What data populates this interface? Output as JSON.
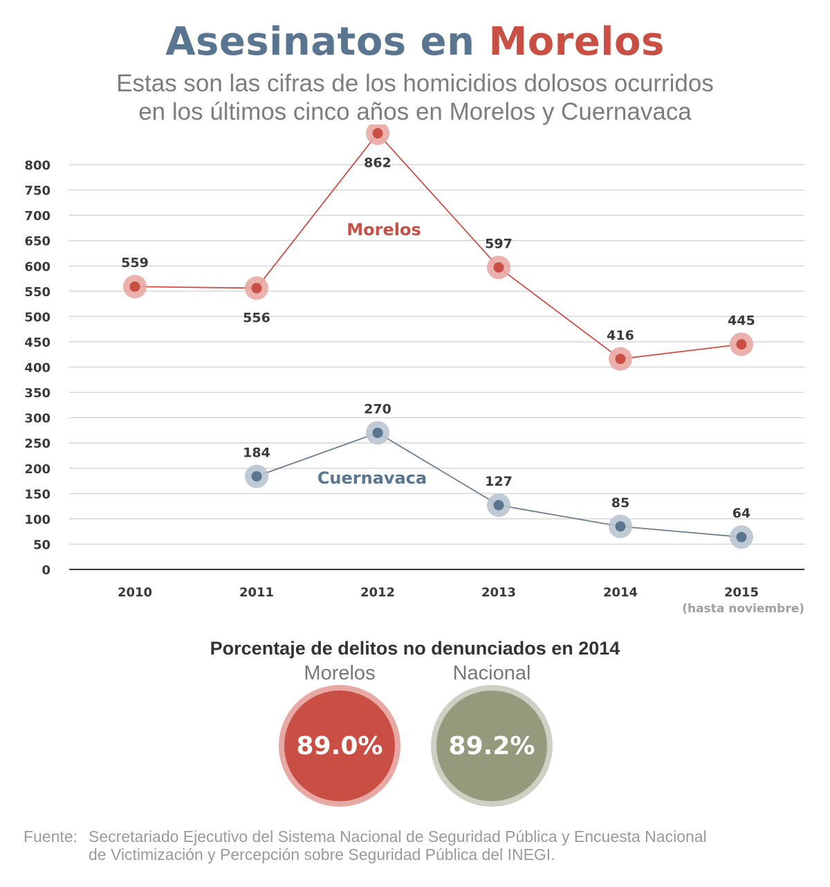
{
  "header": {
    "title_part1": "Asesinatos en",
    "title_part2": "Morelos",
    "subtitle_line1": "Estas son las cifras de los homicidios dolosos ocurridos",
    "subtitle_line2": "en los últimos cinco años en Morelos y Cuernavaca"
  },
  "colors": {
    "morelos": "#c94f45",
    "morelos_halo": "#e8a9a4",
    "cuernavaca": "#5a7590",
    "cuernavaca_line": "#6b7f90",
    "cuernavaca_halo": "#b8c4cf",
    "nacional": "#969a7c",
    "nacional_halo": "#cfd0c4",
    "grid": "#d6d6d6",
    "axis": "#333333"
  },
  "chart_data": {
    "type": "line",
    "title": "Asesinatos en Morelos",
    "subtitle": "Estas son las cifras de los homicidios dolosos ocurridos en los últimos cinco años en Morelos y Cuernavaca",
    "xlabel": "",
    "ylabel": "",
    "categories": [
      "2010",
      "2011",
      "2012",
      "2013",
      "2014",
      "2015"
    ],
    "category_note": {
      "index": 5,
      "text": "(hasta noviembre)"
    },
    "ylim": [
      0,
      800
    ],
    "yticks": [
      0,
      50,
      100,
      150,
      200,
      250,
      300,
      350,
      400,
      450,
      500,
      550,
      600,
      650,
      700,
      750,
      800
    ],
    "grid": true,
    "legend": "inline labels",
    "series": [
      {
        "name": "Morelos",
        "values": [
          559,
          556,
          862,
          597,
          416,
          445
        ],
        "labels": [
          "559",
          "556",
          "862",
          "597",
          "416",
          "445"
        ],
        "label_pos": [
          "above",
          "below",
          "below",
          "above",
          "above",
          "above"
        ]
      },
      {
        "name": "Cuernavaca",
        "values": [
          null,
          184,
          270,
          127,
          85,
          64
        ],
        "labels": [
          null,
          "184",
          "270",
          "127",
          "85",
          "64"
        ],
        "label_pos": [
          null,
          "above",
          "above",
          "above",
          "above",
          "above"
        ]
      }
    ]
  },
  "secondary": {
    "title": "Porcentaje de delitos no denunciados en 2014",
    "items": [
      {
        "label": "Morelos",
        "value": "89.0%"
      },
      {
        "label": "Nacional",
        "value": "89.2%"
      }
    ]
  },
  "source": {
    "label": "Fuente:",
    "text_line1": "Secretariado Ejecutivo del Sistema Nacional de Seguridad Pública  y Encuesta Nacional",
    "text_line2": "de Victimización y Percepción sobre Seguridad Pública del INEGI."
  }
}
